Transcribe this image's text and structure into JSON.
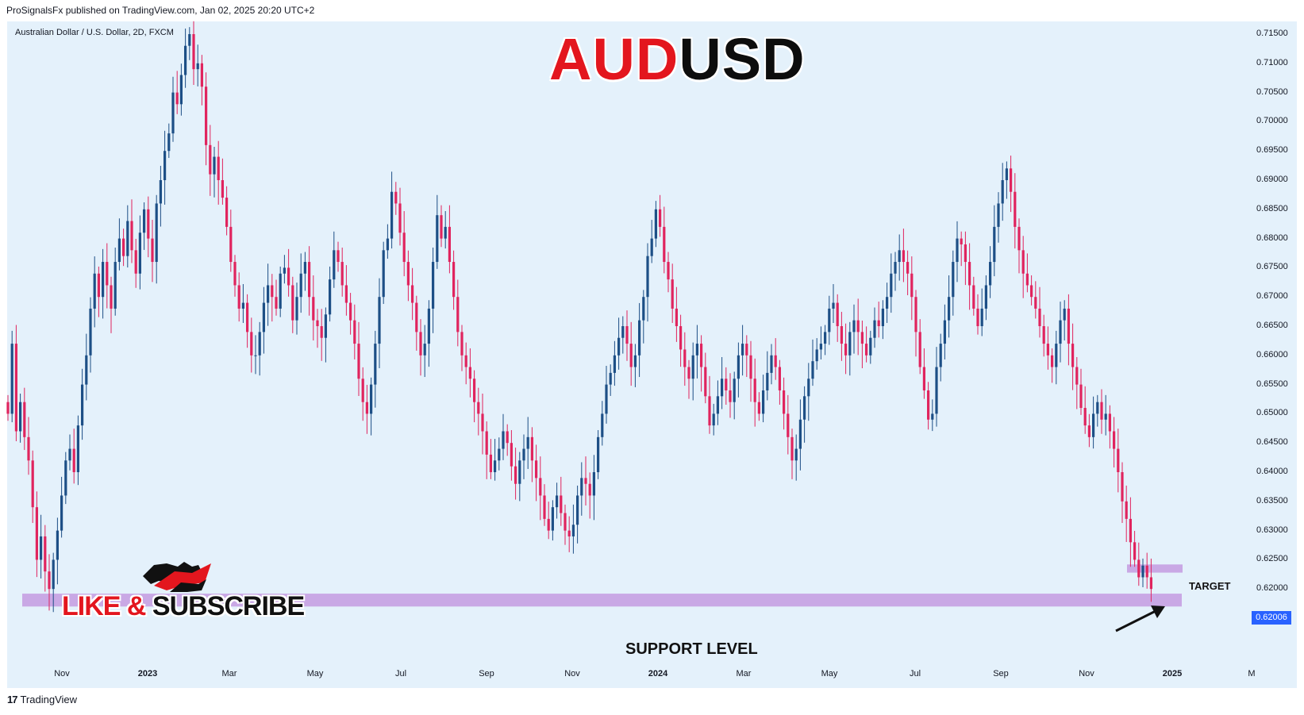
{
  "header": {
    "publisher_line": "ProSignalsFx published on TradingView.com, Jan 02, 2025 20:20 UTC+2"
  },
  "symbol_label": "Australian Dollar / U.S. Dollar, 2D, FXCM",
  "overlay": {
    "title_part1": "AUD",
    "title_part2": "USD",
    "cta_part1": "LIKE & ",
    "cta_part2": "SUBSCRIBE",
    "support_label": "SUPPORT LEVEL",
    "target_label": "TARGET"
  },
  "footer": {
    "logo_glyph": "17",
    "brand": "TradingView"
  },
  "colors": {
    "bull": "#1d4f86",
    "bear": "#e0245e",
    "zone": "#c9a8e5",
    "background": "#e4f1fb",
    "price_tag": "#2962ff",
    "title_red": "#e3161e"
  },
  "chart_data": {
    "type": "candlestick",
    "title": "AUDUSD",
    "timeframe": "2D",
    "source": "FXCM",
    "ylim": [
      0.613,
      0.7175
    ],
    "yticks": [
      "0.71500",
      "0.71000",
      "0.70500",
      "0.70000",
      "0.69500",
      "0.69000",
      "0.68500",
      "0.68000",
      "0.67500",
      "0.67000",
      "0.66500",
      "0.66000",
      "0.65500",
      "0.65000",
      "0.64500",
      "0.64000",
      "0.63500",
      "0.63000",
      "0.62500",
      "0.62000",
      "0.61500"
    ],
    "xticks": [
      {
        "label": "Nov",
        "bold": false
      },
      {
        "label": "2023",
        "bold": true
      },
      {
        "label": "Mar",
        "bold": false
      },
      {
        "label": "May",
        "bold": false
      },
      {
        "label": "Jul",
        "bold": false
      },
      {
        "label": "Sep",
        "bold": false
      },
      {
        "label": "Nov",
        "bold": false
      },
      {
        "label": "2024",
        "bold": true
      },
      {
        "label": "Mar",
        "bold": false
      },
      {
        "label": "May",
        "bold": false
      },
      {
        "label": "Jul",
        "bold": false
      },
      {
        "label": "Sep",
        "bold": false
      },
      {
        "label": "Nov",
        "bold": false
      },
      {
        "label": "2025",
        "bold": true
      },
      {
        "label": "M",
        "bold": false
      }
    ],
    "last_price": "0.62006",
    "support_zone": [
      0.617,
      0.6192
    ],
    "target_zone": [
      0.6228,
      0.6242
    ],
    "closes": [
      0.65,
      0.662,
      0.647,
      0.652,
      0.646,
      0.642,
      0.634,
      0.625,
      0.629,
      0.623,
      0.62,
      0.625,
      0.63,
      0.636,
      0.642,
      0.644,
      0.64,
      0.648,
      0.655,
      0.66,
      0.668,
      0.674,
      0.67,
      0.676,
      0.672,
      0.668,
      0.676,
      0.68,
      0.677,
      0.683,
      0.678,
      0.674,
      0.681,
      0.685,
      0.68,
      0.676,
      0.686,
      0.69,
      0.695,
      0.698,
      0.705,
      0.703,
      0.708,
      0.713,
      0.715,
      0.709,
      0.71,
      0.706,
      0.696,
      0.691,
      0.694,
      0.69,
      0.687,
      0.682,
      0.676,
      0.672,
      0.668,
      0.669,
      0.664,
      0.66,
      0.66,
      0.664,
      0.669,
      0.672,
      0.67,
      0.668,
      0.674,
      0.675,
      0.672,
      0.666,
      0.67,
      0.674,
      0.676,
      0.67,
      0.666,
      0.665,
      0.663,
      0.667,
      0.673,
      0.678,
      0.676,
      0.672,
      0.669,
      0.666,
      0.662,
      0.656,
      0.652,
      0.65,
      0.655,
      0.662,
      0.67,
      0.678,
      0.68,
      0.688,
      0.686,
      0.681,
      0.676,
      0.672,
      0.669,
      0.664,
      0.66,
      0.662,
      0.668,
      0.676,
      0.684,
      0.68,
      0.682,
      0.676,
      0.67,
      0.664,
      0.66,
      0.658,
      0.656,
      0.652,
      0.65,
      0.647,
      0.643,
      0.64,
      0.642,
      0.644,
      0.647,
      0.645,
      0.641,
      0.638,
      0.642,
      0.644,
      0.646,
      0.642,
      0.639,
      0.636,
      0.632,
      0.63,
      0.634,
      0.636,
      0.633,
      0.63,
      0.629,
      0.631,
      0.636,
      0.639,
      0.638,
      0.636,
      0.64,
      0.646,
      0.65,
      0.655,
      0.657,
      0.66,
      0.663,
      0.665,
      0.662,
      0.658,
      0.66,
      0.666,
      0.67,
      0.677,
      0.68,
      0.685,
      0.682,
      0.676,
      0.673,
      0.668,
      0.665,
      0.661,
      0.658,
      0.656,
      0.66,
      0.662,
      0.658,
      0.653,
      0.648,
      0.65,
      0.653,
      0.656,
      0.654,
      0.652,
      0.656,
      0.66,
      0.662,
      0.66,
      0.656,
      0.652,
      0.65,
      0.654,
      0.657,
      0.66,
      0.658,
      0.654,
      0.65,
      0.646,
      0.642,
      0.644,
      0.649,
      0.653,
      0.656,
      0.659,
      0.661,
      0.662,
      0.664,
      0.668,
      0.669,
      0.665,
      0.662,
      0.66,
      0.664,
      0.666,
      0.664,
      0.662,
      0.66,
      0.663,
      0.666,
      0.665,
      0.668,
      0.67,
      0.674,
      0.676,
      0.678,
      0.676,
      0.674,
      0.67,
      0.664,
      0.658,
      0.654,
      0.649,
      0.65,
      0.658,
      0.662,
      0.666,
      0.67,
      0.676,
      0.68,
      0.679,
      0.676,
      0.672,
      0.668,
      0.665,
      0.668,
      0.672,
      0.676,
      0.682,
      0.686,
      0.69,
      0.692,
      0.688,
      0.682,
      0.678,
      0.674,
      0.672,
      0.67,
      0.668,
      0.665,
      0.662,
      0.66,
      0.658,
      0.662,
      0.666,
      0.668,
      0.662,
      0.658,
      0.655,
      0.651,
      0.648,
      0.646,
      0.65,
      0.652,
      0.649,
      0.65,
      0.647,
      0.644,
      0.64,
      0.635,
      0.632,
      0.628,
      0.625,
      0.622,
      0.624,
      0.622,
      0.62
    ]
  }
}
